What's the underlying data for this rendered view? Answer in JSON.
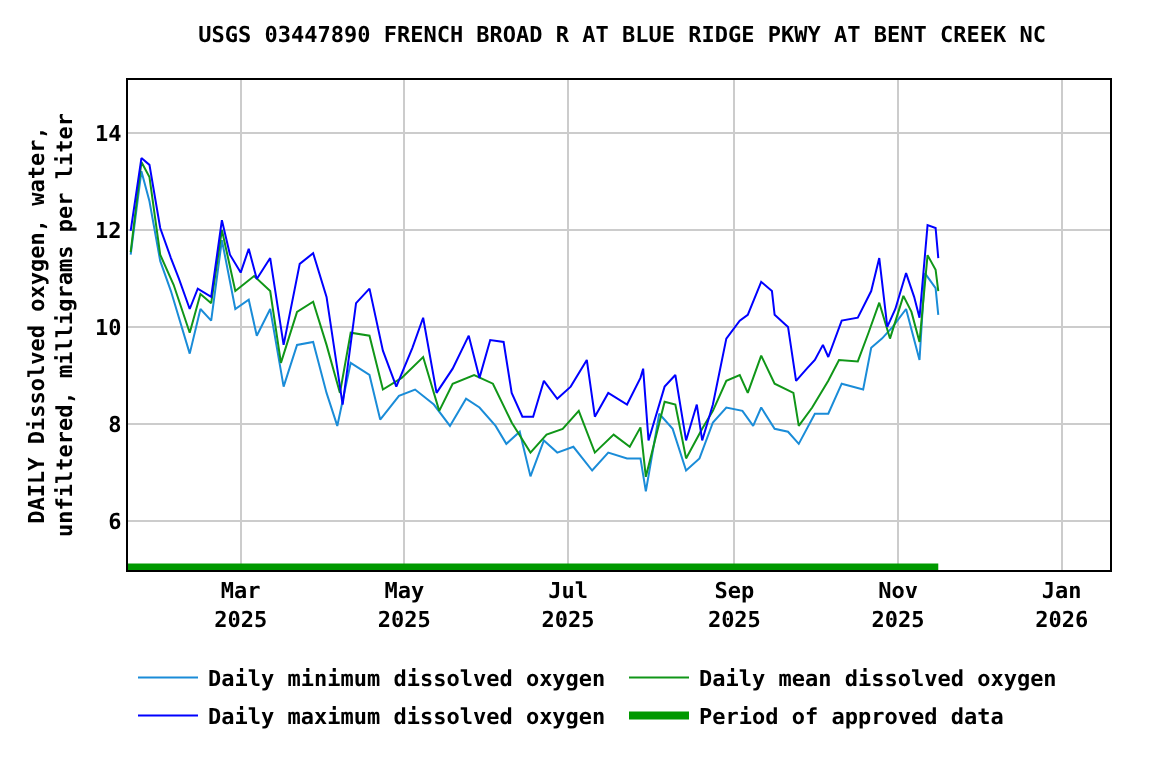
{
  "chart_data": {
    "type": "line",
    "title": "USGS 03447890 FRENCH BROAD R AT BLUE RIDGE PKWY AT BENT CREEK NC",
    "ylabel": "DAILY Dissolved oxygen, water,\nunfiltered, milligrams per liter",
    "xlim": [
      "2025-01-18",
      "2026-01-19"
    ],
    "xticks": [
      {
        "value": "2025-03-01",
        "label": "Mar\n2025"
      },
      {
        "value": "2025-05-01",
        "label": "May\n2025"
      },
      {
        "value": "2025-07-01",
        "label": "Jul\n2025"
      },
      {
        "value": "2025-09-01",
        "label": "Sep\n2025"
      },
      {
        "value": "2025-11-01",
        "label": "Nov\n2025"
      },
      {
        "value": "2026-01-01",
        "label": "Jan\n2026"
      }
    ],
    "ylim": [
      5,
      15.1
    ],
    "yticks": [
      6,
      8,
      10,
      12,
      14
    ],
    "grid": true,
    "legend": "bottom",
    "series": [
      {
        "name": "Daily minimum dissolved oxygen",
        "color": "#1a8cd8",
        "x": [
          "2025-01-19",
          "2025-01-23",
          "2025-01-26",
          "2025-01-30",
          "2025-02-03",
          "2025-02-10",
          "2025-02-14",
          "2025-02-18",
          "2025-02-22",
          "2025-02-27",
          "2025-03-04",
          "2025-03-07",
          "2025-03-12",
          "2025-03-17",
          "2025-03-22",
          "2025-03-28",
          "2025-04-02",
          "2025-04-06",
          "2025-04-11",
          "2025-04-18",
          "2025-04-22",
          "2025-04-29",
          "2025-05-05",
          "2025-05-12",
          "2025-05-18",
          "2025-05-24",
          "2025-05-29",
          "2025-06-04",
          "2025-06-08",
          "2025-06-13",
          "2025-06-17",
          "2025-06-22",
          "2025-06-27",
          "2025-07-03",
          "2025-07-10",
          "2025-07-16",
          "2025-07-23",
          "2025-07-28",
          "2025-07-30",
          "2025-08-04",
          "2025-08-09",
          "2025-08-14",
          "2025-08-19",
          "2025-08-24",
          "2025-08-29",
          "2025-09-04",
          "2025-09-08",
          "2025-09-11",
          "2025-09-16",
          "2025-09-21",
          "2025-09-25",
          "2025-10-01",
          "2025-10-06",
          "2025-10-11",
          "2025-10-19",
          "2025-10-22",
          "2025-10-26",
          "2025-10-30",
          "2025-11-04",
          "2025-11-09",
          "2025-11-11",
          "2025-11-15",
          "2025-11-16"
        ],
        "values": [
          11.5,
          13.22,
          12.6,
          11.37,
          10.75,
          9.46,
          10.38,
          10.14,
          11.8,
          10.38,
          10.57,
          9.83,
          10.38,
          8.78,
          9.64,
          9.7,
          8.65,
          7.97,
          9.27,
          9.02,
          8.1,
          8.59,
          8.72,
          8.41,
          7.97,
          8.53,
          8.35,
          7.97,
          7.6,
          7.85,
          6.93,
          7.67,
          7.42,
          7.54,
          7.05,
          7.42,
          7.3,
          7.3,
          6.62,
          8.22,
          7.91,
          7.05,
          7.3,
          8.04,
          8.35,
          8.28,
          7.97,
          8.35,
          7.91,
          7.85,
          7.6,
          8.22,
          8.22,
          8.84,
          8.72,
          9.58,
          9.77,
          10.01,
          10.38,
          9.33,
          11.12,
          10.81,
          10.26
        ]
      },
      {
        "name": "Daily mean dissolved oxygen",
        "color": "#109618",
        "x": [
          "2025-01-19",
          "2025-01-23",
          "2025-01-26",
          "2025-01-30",
          "2025-02-04",
          "2025-02-10",
          "2025-02-14",
          "2025-02-18",
          "2025-02-22",
          "2025-02-27",
          "2025-03-06",
          "2025-03-12",
          "2025-03-16",
          "2025-03-22",
          "2025-03-28",
          "2025-04-02",
          "2025-04-07",
          "2025-04-11",
          "2025-04-18",
          "2025-04-23",
          "2025-04-30",
          "2025-05-08",
          "2025-05-14",
          "2025-05-19",
          "2025-05-27",
          "2025-06-03",
          "2025-06-10",
          "2025-06-17",
          "2025-06-23",
          "2025-06-29",
          "2025-07-05",
          "2025-07-11",
          "2025-07-18",
          "2025-07-24",
          "2025-07-28",
          "2025-07-30",
          "2025-08-06",
          "2025-08-10",
          "2025-08-14",
          "2025-08-20",
          "2025-08-24",
          "2025-08-29",
          "2025-09-03",
          "2025-09-06",
          "2025-09-11",
          "2025-09-16",
          "2025-09-23",
          "2025-09-25",
          "2025-09-30",
          "2025-10-06",
          "2025-10-10",
          "2025-10-17",
          "2025-10-21",
          "2025-10-25",
          "2025-10-29",
          "2025-11-03",
          "2025-11-06",
          "2025-11-09",
          "2025-11-12",
          "2025-11-15",
          "2025-11-16"
        ],
        "values": [
          11.55,
          13.41,
          13.1,
          11.5,
          10.88,
          9.89,
          10.69,
          10.5,
          12.01,
          10.75,
          11.06,
          10.75,
          9.27,
          10.32,
          10.53,
          9.64,
          8.65,
          9.89,
          9.83,
          8.72,
          8.96,
          9.39,
          8.28,
          8.84,
          9.02,
          8.84,
          8.04,
          7.42,
          7.79,
          7.91,
          8.28,
          7.42,
          7.79,
          7.54,
          7.94,
          6.92,
          8.47,
          8.41,
          7.3,
          7.91,
          8.28,
          8.9,
          9.02,
          8.65,
          9.42,
          8.84,
          8.65,
          7.97,
          8.35,
          8.9,
          9.33,
          9.3,
          9.89,
          10.51,
          9.77,
          10.65,
          10.32,
          9.7,
          11.49,
          11.19,
          10.75
        ]
      },
      {
        "name": "Daily maximum dissolved oxygen",
        "color": "#0000ff",
        "x": [
          "2025-01-19",
          "2025-01-23",
          "2025-01-26",
          "2025-01-30",
          "2025-02-03",
          "2025-02-06",
          "2025-02-10",
          "2025-02-13",
          "2025-02-18",
          "2025-02-22",
          "2025-02-25",
          "2025-03-01",
          "2025-03-04",
          "2025-03-07",
          "2025-03-12",
          "2025-03-17",
          "2025-03-23",
          "2025-03-28",
          "2025-04-02",
          "2025-04-06",
          "2025-04-08",
          "2025-04-13",
          "2025-04-18",
          "2025-04-23",
          "2025-04-28",
          "2025-05-04",
          "2025-05-08",
          "2025-05-13",
          "2025-05-19",
          "2025-05-25",
          "2025-05-29",
          "2025-06-02",
          "2025-06-07",
          "2025-06-10",
          "2025-06-14",
          "2025-06-18",
          "2025-06-22",
          "2025-06-27",
          "2025-07-02",
          "2025-07-08",
          "2025-07-11",
          "2025-07-16",
          "2025-07-23",
          "2025-07-28",
          "2025-07-29",
          "2025-07-31",
          "2025-08-06",
          "2025-08-10",
          "2025-08-14",
          "2025-08-18",
          "2025-08-20",
          "2025-08-24",
          "2025-08-29",
          "2025-09-03",
          "2025-09-06",
          "2025-09-11",
          "2025-09-15",
          "2025-09-16",
          "2025-09-21",
          "2025-09-24",
          "2025-09-28",
          "2025-10-01",
          "2025-10-04",
          "2025-10-06",
          "2025-10-11",
          "2025-10-17",
          "2025-10-22",
          "2025-10-25",
          "2025-10-28",
          "2025-10-31",
          "2025-11-04",
          "2025-11-07",
          "2025-11-09",
          "2025-11-12",
          "2025-11-15",
          "2025-11-16"
        ],
        "values": [
          11.99,
          13.49,
          13.35,
          12.05,
          11.43,
          11.0,
          10.38,
          10.8,
          10.63,
          12.21,
          11.5,
          11.13,
          11.62,
          11.0,
          11.43,
          9.64,
          11.31,
          11.53,
          10.63,
          9.15,
          8.41,
          10.5,
          10.8,
          9.52,
          8.78,
          9.58,
          10.2,
          8.65,
          9.15,
          9.83,
          8.96,
          9.74,
          9.7,
          8.65,
          8.16,
          8.16,
          8.9,
          8.53,
          8.78,
          9.33,
          8.16,
          8.65,
          8.41,
          8.96,
          9.15,
          7.67,
          8.78,
          9.02,
          7.67,
          8.41,
          7.67,
          8.41,
          9.77,
          10.14,
          10.26,
          10.94,
          10.75,
          10.26,
          10.01,
          8.9,
          9.15,
          9.33,
          9.64,
          9.39,
          10.14,
          10.2,
          10.75,
          11.43,
          10.01,
          10.38,
          11.12,
          10.63,
          10.2,
          12.11,
          12.05,
          11.43
        ]
      },
      {
        "name": "Period of approved data",
        "color": "#009900",
        "x": [
          "2025-01-18",
          "2025-11-16"
        ],
        "values": [
          5.05,
          5.05
        ]
      }
    ]
  }
}
